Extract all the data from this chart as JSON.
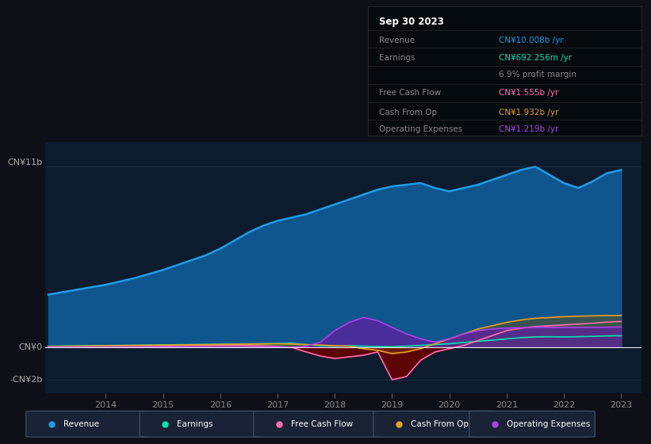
{
  "bg_color": "#0d1117",
  "chart_bg": "#0d1b2e",
  "legend_labels": [
    "Revenue",
    "Earnings",
    "Free Cash Flow",
    "Cash From Op",
    "Operating Expenses"
  ],
  "legend_colors": [
    "#1e9de8",
    "#00e5b0",
    "#ff6eb4",
    "#e8a020",
    "#b040e8"
  ],
  "info_box": {
    "date": "Sep 30 2023",
    "revenue_label": "Revenue",
    "revenue_value": "CN¥10.008b /yr",
    "revenue_color": "#1e9de8",
    "earnings_label": "Earnings",
    "earnings_value": "CN¥692.256m /yr",
    "earnings_color": "#00e5b0",
    "margin_text": "6.9% profit margin",
    "fcf_label": "Free Cash Flow",
    "fcf_value": "CN¥1.555b /yr",
    "fcf_color": "#ff6eb4",
    "cashop_label": "Cash From Op",
    "cashop_value": "CN¥1.932b /yr",
    "cashop_color": "#e8a020",
    "opex_label": "Operating Expenses",
    "opex_value": "CN¥1.219b /yr",
    "opex_color": "#b040e8"
  },
  "revenue": [
    3.2,
    3.35,
    3.5,
    3.65,
    3.8,
    4.0,
    4.2,
    4.45,
    4.7,
    5.0,
    5.3,
    5.6,
    6.0,
    6.5,
    7.0,
    7.4,
    7.7,
    7.9,
    8.1,
    8.4,
    8.7,
    9.0,
    9.3,
    9.6,
    9.8,
    9.9,
    10.0,
    9.7,
    9.5,
    9.7,
    9.9,
    10.2,
    10.5,
    10.8,
    11.0,
    10.5,
    10.0,
    9.7,
    10.1,
    10.6,
    10.8
  ],
  "earnings": [
    0.05,
    0.06,
    0.07,
    0.08,
    0.09,
    0.1,
    0.11,
    0.12,
    0.13,
    0.14,
    0.15,
    0.16,
    0.17,
    0.18,
    0.19,
    0.2,
    0.21,
    0.22,
    0.15,
    0.08,
    0.05,
    0.08,
    0.05,
    0.03,
    0.02,
    0.05,
    0.1,
    0.15,
    0.2,
    0.28,
    0.35,
    0.42,
    0.5,
    0.57,
    0.62,
    0.63,
    0.62,
    0.63,
    0.65,
    0.68,
    0.69
  ],
  "free_cash_flow": [
    0.02,
    0.02,
    0.03,
    0.03,
    0.04,
    0.04,
    0.05,
    0.06,
    0.07,
    0.08,
    0.09,
    0.09,
    0.1,
    0.1,
    0.09,
    0.07,
    0.04,
    -0.02,
    -0.3,
    -0.55,
    -0.7,
    -0.6,
    -0.5,
    -0.3,
    -2.0,
    -1.8,
    -0.8,
    -0.3,
    -0.1,
    0.1,
    0.4,
    0.7,
    1.0,
    1.15,
    1.25,
    1.3,
    1.35,
    1.4,
    1.45,
    1.52,
    1.56
  ],
  "cash_from_op": [
    0.04,
    0.05,
    0.06,
    0.07,
    0.08,
    0.09,
    0.1,
    0.11,
    0.12,
    0.13,
    0.14,
    0.15,
    0.16,
    0.17,
    0.18,
    0.19,
    0.2,
    0.18,
    0.15,
    0.12,
    0.08,
    0.05,
    -0.1,
    -0.2,
    -0.4,
    -0.3,
    -0.1,
    0.2,
    0.5,
    0.8,
    1.1,
    1.3,
    1.5,
    1.65,
    1.75,
    1.8,
    1.85,
    1.88,
    1.9,
    1.92,
    1.93
  ],
  "operating_expenses": [
    0.0,
    0.0,
    0.0,
    0.0,
    0.0,
    0.0,
    0.0,
    0.0,
    0.0,
    0.0,
    0.0,
    0.0,
    0.0,
    0.0,
    0.0,
    0.0,
    0.0,
    0.0,
    0.05,
    0.3,
    1.0,
    1.5,
    1.8,
    1.6,
    1.2,
    0.8,
    0.5,
    0.3,
    0.5,
    0.8,
    1.0,
    1.1,
    1.15,
    1.18,
    1.2,
    1.2,
    1.2,
    1.2,
    1.2,
    1.21,
    1.22
  ],
  "x_years": [
    2013.0,
    2013.25,
    2013.5,
    2013.75,
    2014.0,
    2014.25,
    2014.5,
    2014.75,
    2015.0,
    2015.25,
    2015.5,
    2015.75,
    2016.0,
    2016.25,
    2016.5,
    2016.75,
    2017.0,
    2017.25,
    2017.5,
    2017.75,
    2018.0,
    2018.25,
    2018.5,
    2018.75,
    2019.0,
    2019.25,
    2019.5,
    2019.75,
    2020.0,
    2020.25,
    2020.5,
    2020.75,
    2021.0,
    2021.25,
    2021.5,
    2021.75,
    2022.0,
    2022.25,
    2022.5,
    2022.75,
    2023.0
  ],
  "xtick_labels": [
    "2014",
    "2015",
    "2016",
    "2017",
    "2018",
    "2019",
    "2020",
    "2021",
    "2022",
    "2023"
  ],
  "xtick_positions": [
    2014,
    2015,
    2016,
    2017,
    2018,
    2019,
    2020,
    2021,
    2022,
    2023
  ],
  "ylim_min": -2.8,
  "ylim_max": 12.5,
  "y_label_11b": 11.0,
  "y_label_0": 0.0,
  "y_label_neg2b": -2.0
}
